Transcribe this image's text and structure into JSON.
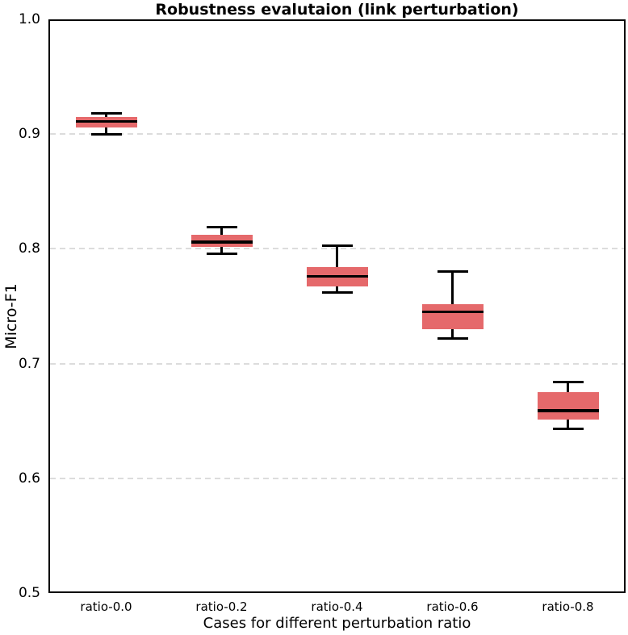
{
  "chart_data": {
    "type": "box",
    "title": "Robustness evalutaion (link perturbation)",
    "xlabel": "Cases for different perturbation ratio",
    "ylabel": "Micro-F1",
    "ylim": [
      0.5,
      1.0
    ],
    "yticks": [
      "1.0",
      "0.9",
      "0.8",
      "0.7",
      "0.6",
      "0.5"
    ],
    "gridlines_at": [
      0.9,
      0.8,
      0.7,
      0.6
    ],
    "grid_style": "dashed",
    "legend": "none",
    "categories": [
      "ratio-0.0",
      "ratio-0.2",
      "ratio-0.4",
      "ratio-0.6",
      "ratio-0.8"
    ],
    "boxes": [
      {
        "category": "ratio-0.0",
        "whisker_low": 0.9,
        "q1": 0.906,
        "median": 0.911,
        "q3": 0.915,
        "whisker_high": 0.918
      },
      {
        "category": "ratio-0.2",
        "whisker_low": 0.796,
        "q1": 0.802,
        "median": 0.806,
        "q3": 0.812,
        "whisker_high": 0.819
      },
      {
        "category": "ratio-0.4",
        "whisker_low": 0.762,
        "q1": 0.767,
        "median": 0.776,
        "q3": 0.784,
        "whisker_high": 0.803
      },
      {
        "category": "ratio-0.6",
        "whisker_low": 0.722,
        "q1": 0.73,
        "median": 0.745,
        "q3": 0.752,
        "whisker_high": 0.78
      },
      {
        "category": "ratio-0.8",
        "whisker_low": 0.643,
        "q1": 0.651,
        "median": 0.659,
        "q3": 0.675,
        "whisker_high": 0.684
      }
    ],
    "colors": {
      "box_fill": "#e5696b",
      "median": "#000000",
      "whisker": "#000000",
      "grid": "#dcdcdc",
      "axis": "#000000",
      "background": "#ffffff"
    }
  }
}
